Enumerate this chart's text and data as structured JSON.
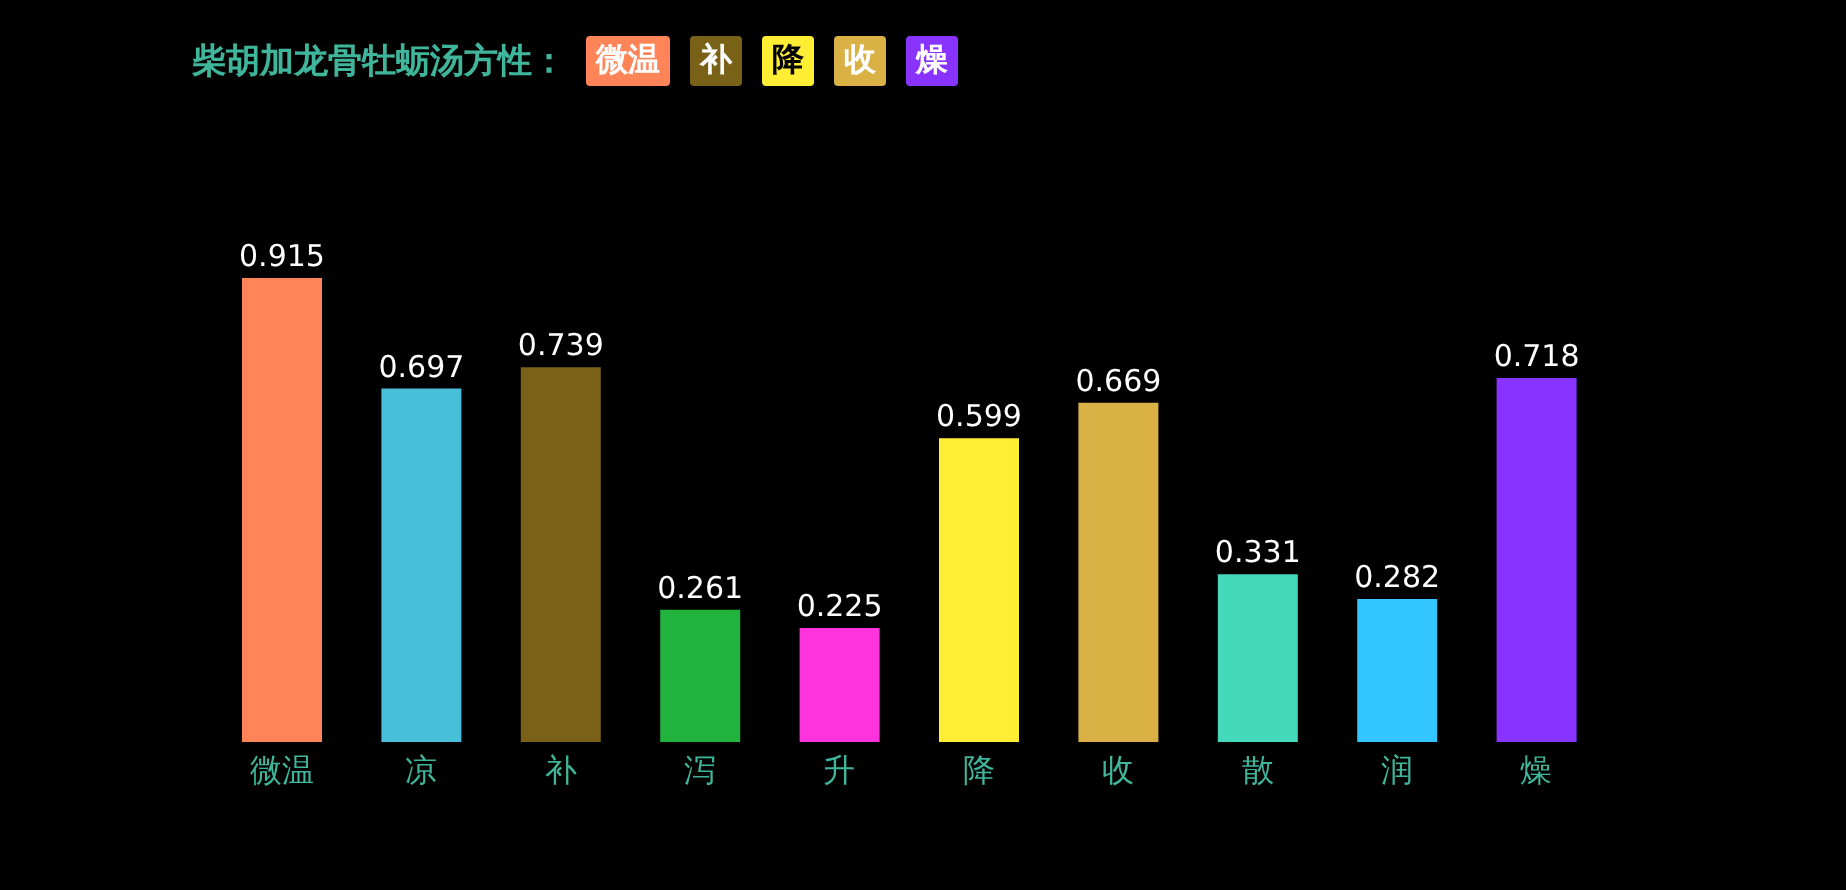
{
  "chart_data": {
    "type": "bar",
    "title": "柴胡加龙骨牡蛎汤方性：",
    "annotations": [
      "微温",
      "补",
      "降",
      "收",
      "燥"
    ],
    "categories": [
      "微温",
      "凉",
      "补",
      "泻",
      "升",
      "降",
      "收",
      "散",
      "润",
      "燥"
    ],
    "values": [
      0.915,
      0.697,
      0.739,
      0.261,
      0.225,
      0.599,
      0.669,
      0.331,
      0.282,
      0.718
    ],
    "colors": [
      "#ff8457",
      "#48bfd8",
      "#7a6118",
      "#22b33e",
      "#ff33dd",
      "#ffee33",
      "#d9b144",
      "#44d9bb",
      "#33c5ff",
      "#8833ff"
    ],
    "data_labels": true,
    "grid": false
  }
}
